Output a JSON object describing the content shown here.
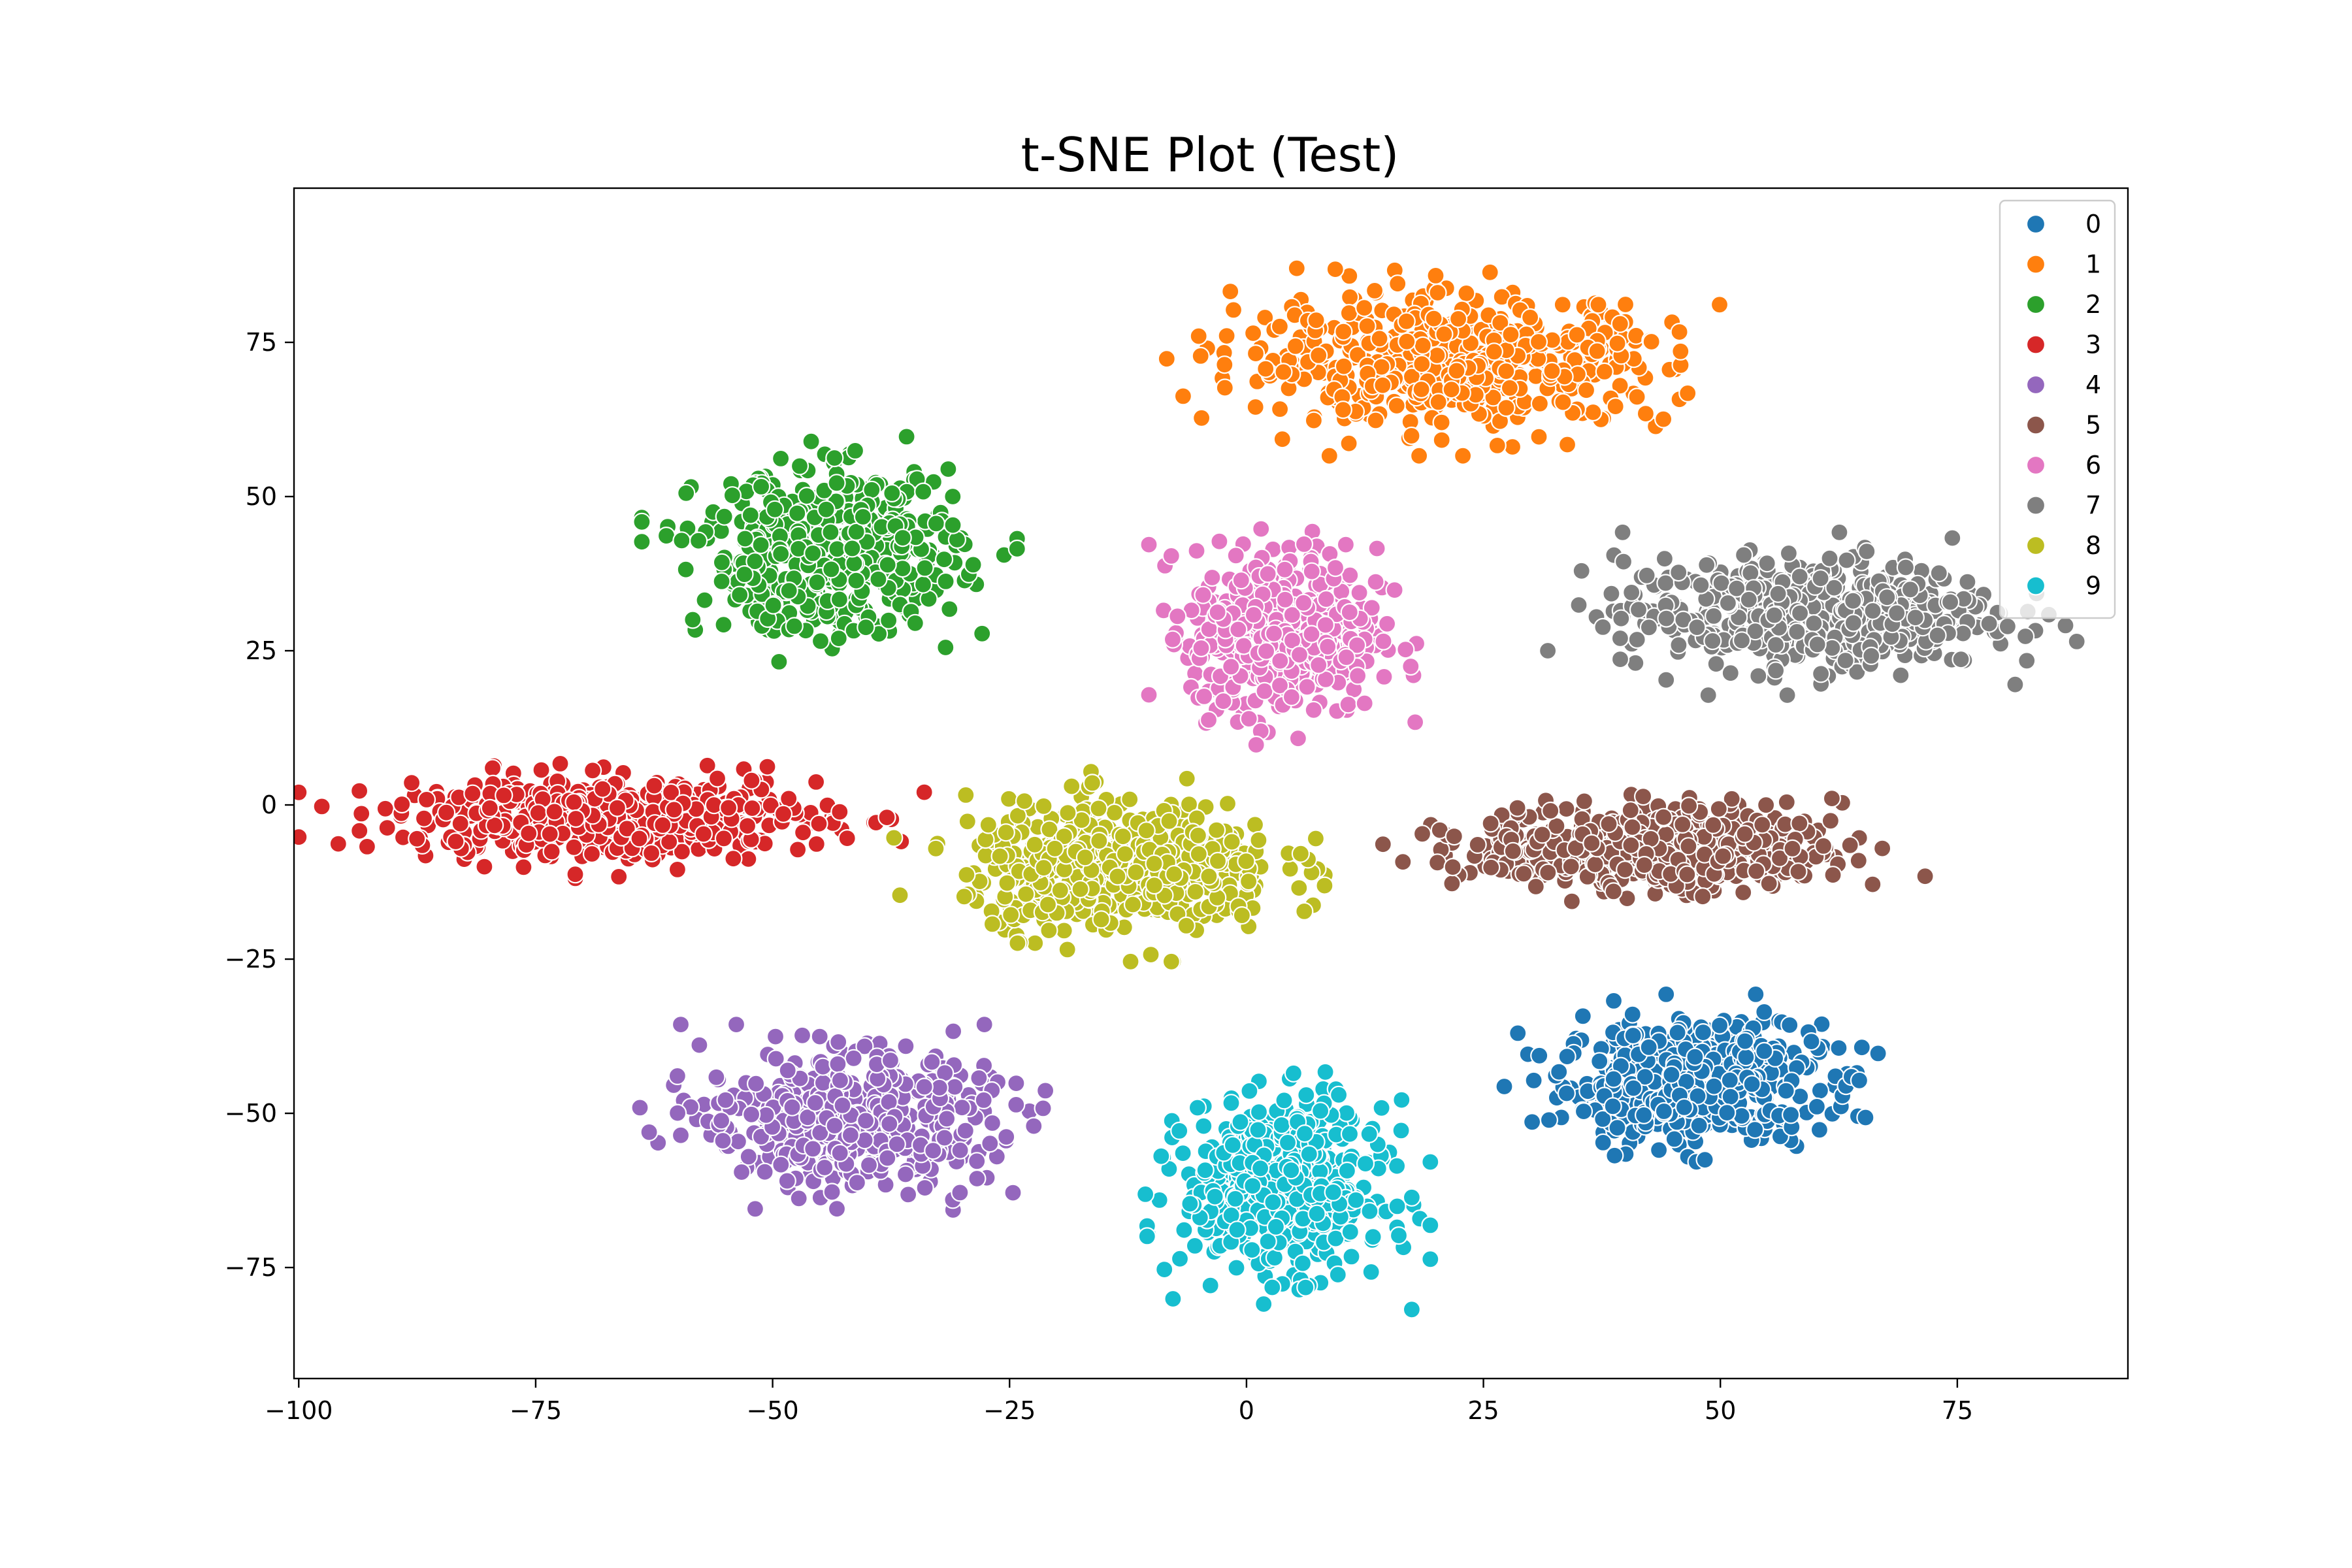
{
  "chart_data": {
    "type": "scatter",
    "title": "t-SNE Plot (Test)",
    "xlabel": "",
    "ylabel": "",
    "xlim": [
      -100.5,
      93
    ],
    "ylim": [
      -93,
      100
    ],
    "grid": false,
    "legend_position": "top-right",
    "x_ticks": [
      -100,
      -75,
      -50,
      -25,
      0,
      25,
      50,
      75
    ],
    "x_tick_labels": [
      "−100",
      "−75",
      "−50",
      "−25",
      "0",
      "25",
      "50",
      "75"
    ],
    "y_ticks": [
      -75,
      -50,
      -25,
      0,
      25,
      50,
      75
    ],
    "y_tick_labels": [
      "−75",
      "−50",
      "−25",
      "0",
      "25",
      "50",
      "75"
    ],
    "series": [
      {
        "name": "0",
        "color": "#1f77b4",
        "cluster": {
          "center": [
            47,
            -45
          ],
          "spread": [
            9,
            6.5
          ],
          "count": 520
        }
      },
      {
        "name": "1",
        "color": "#ff7f0e",
        "cluster": {
          "center": [
            22,
            72
          ],
          "spread": [
            15,
            7
          ],
          "count": 560
        }
      },
      {
        "name": "2",
        "color": "#2ca02c",
        "cluster": {
          "center": [
            -44,
            41
          ],
          "spread": [
            9,
            8.5
          ],
          "count": 520
        }
      },
      {
        "name": "3",
        "color": "#d62728",
        "cluster": {
          "center": [
            -67,
            -2
          ],
          "spread": [
            15,
            4.5
          ],
          "count": 540
        }
      },
      {
        "name": "4",
        "color": "#9467bd",
        "cluster": {
          "center": [
            -42,
            -51
          ],
          "spread": [
            10,
            7
          ],
          "count": 500
        }
      },
      {
        "name": "5",
        "color": "#8c564b",
        "cluster": {
          "center": [
            43,
            -7
          ],
          "spread": [
            13,
            4.5
          ],
          "count": 520
        }
      },
      {
        "name": "6",
        "color": "#e377c2",
        "cluster": {
          "center": [
            4,
            28
          ],
          "spread": [
            6.5,
            9
          ],
          "count": 500
        }
      },
      {
        "name": "7",
        "color": "#7f7f7f",
        "cluster": {
          "center": [
            59,
            31
          ],
          "spread": [
            13,
            6
          ],
          "count": 520
        }
      },
      {
        "name": "8",
        "color": "#bcbd22",
        "cluster": {
          "center": [
            -13,
            -10
          ],
          "spread": [
            11,
            7
          ],
          "count": 520
        }
      },
      {
        "name": "9",
        "color": "#17becf",
        "cluster": {
          "center": [
            4,
            -62
          ],
          "spread": [
            7,
            9
          ],
          "count": 520
        }
      }
    ]
  }
}
